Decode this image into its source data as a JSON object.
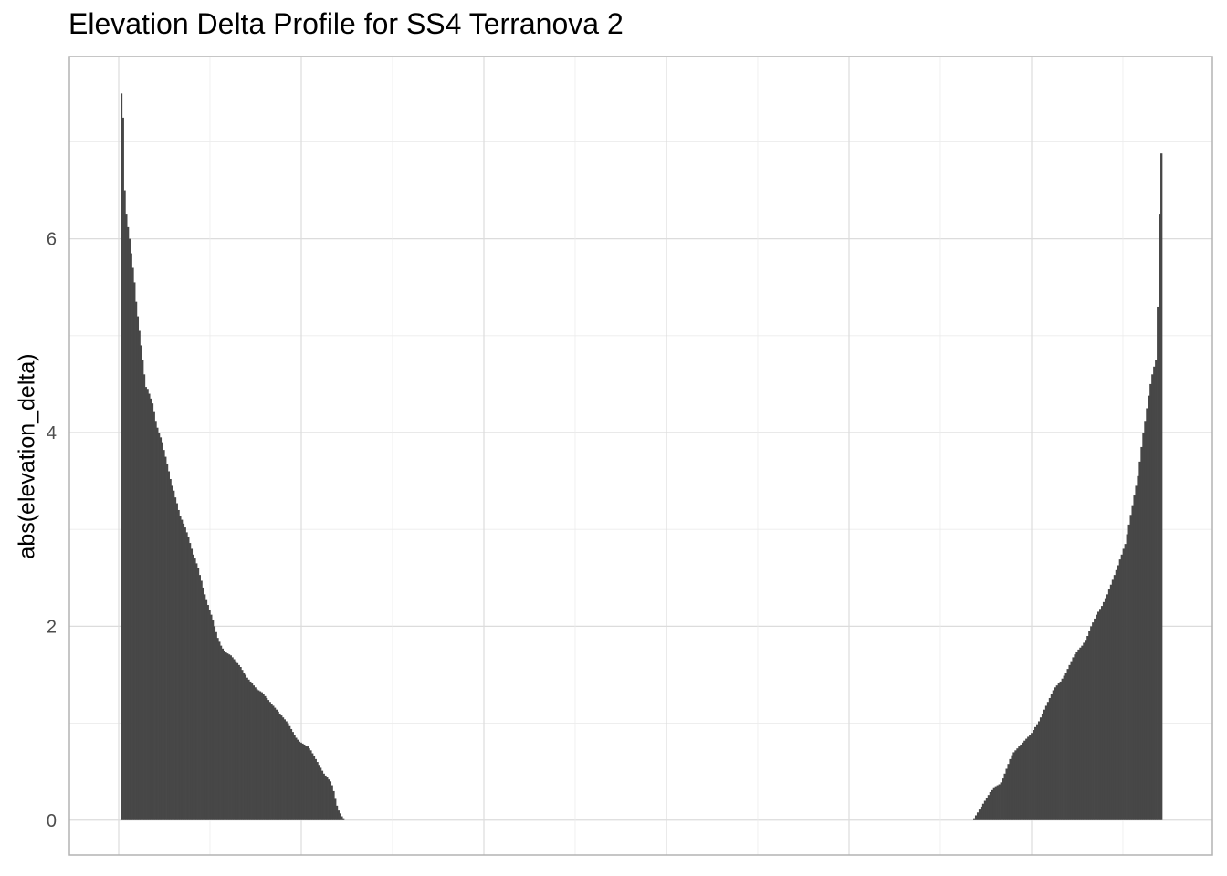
{
  "chart_data": {
    "type": "bar",
    "title": "Elevation Delta Profile for SS4 Terranova 2",
    "xlabel": "",
    "ylabel": "abs(elevation_delta)",
    "ylim": [
      -0.36,
      7.88
    ],
    "y_ticks": [
      0,
      2,
      4,
      6
    ],
    "x_tick_labels": "none",
    "grid": true,
    "bar_color": "#474747",
    "grid_color": "#dcdcdc",
    "panel_border_color": "#b3b3b3",
    "segments": [
      {
        "name": "start",
        "profile": "descending",
        "values": [
          7.5,
          7.25,
          6.5,
          6.25,
          6.12,
          6.0,
          5.85,
          5.7,
          5.55,
          5.35,
          5.2,
          5.05,
          4.9,
          4.75,
          4.6,
          4.47,
          4.45,
          4.4,
          4.35,
          4.3,
          4.22,
          4.12,
          4.05,
          4.0,
          3.95,
          3.9,
          3.82,
          3.75,
          3.68,
          3.6,
          3.52,
          3.45,
          3.4,
          3.33,
          3.27,
          3.2,
          3.14,
          3.1,
          3.06,
          3.02,
          2.97,
          2.92,
          2.86,
          2.8,
          2.74,
          2.7,
          2.65,
          2.6,
          2.53,
          2.47,
          2.4,
          2.33,
          2.28,
          2.22,
          2.17,
          2.12,
          2.06,
          2.0,
          1.94,
          1.88,
          1.84,
          1.8,
          1.77,
          1.75,
          1.73,
          1.72,
          1.71,
          1.7,
          1.68,
          1.66,
          1.64,
          1.62,
          1.6,
          1.58,
          1.55,
          1.52,
          1.5,
          1.47,
          1.45,
          1.43,
          1.41,
          1.39,
          1.37,
          1.35,
          1.34,
          1.33,
          1.32,
          1.3,
          1.28,
          1.26,
          1.24,
          1.22,
          1.2,
          1.18,
          1.16,
          1.14,
          1.12,
          1.1,
          1.08,
          1.06,
          1.04,
          1.02,
          1.0,
          0.97,
          0.94,
          0.91,
          0.88,
          0.85,
          0.83,
          0.81,
          0.8,
          0.79,
          0.78,
          0.77,
          0.76,
          0.74,
          0.72,
          0.69,
          0.66,
          0.63,
          0.6,
          0.57,
          0.54,
          0.51,
          0.48,
          0.46,
          0.44,
          0.42,
          0.4,
          0.36,
          0.3,
          0.22,
          0.15,
          0.1,
          0.07,
          0.04,
          0.02
        ]
      },
      {
        "name": "end",
        "profile": "ascending",
        "values": [
          0.02,
          0.05,
          0.08,
          0.11,
          0.14,
          0.17,
          0.2,
          0.23,
          0.26,
          0.29,
          0.31,
          0.33,
          0.35,
          0.36,
          0.37,
          0.39,
          0.43,
          0.48,
          0.53,
          0.58,
          0.63,
          0.67,
          0.7,
          0.72,
          0.74,
          0.76,
          0.78,
          0.8,
          0.82,
          0.84,
          0.86,
          0.88,
          0.9,
          0.93,
          0.96,
          0.99,
          1.02,
          1.06,
          1.1,
          1.14,
          1.18,
          1.22,
          1.26,
          1.3,
          1.34,
          1.37,
          1.39,
          1.41,
          1.43,
          1.46,
          1.49,
          1.52,
          1.56,
          1.6,
          1.64,
          1.68,
          1.71,
          1.74,
          1.76,
          1.78,
          1.8,
          1.83,
          1.86,
          1.9,
          1.95,
          2.0,
          2.04,
          2.08,
          2.12,
          2.15,
          2.18,
          2.21,
          2.25,
          2.29,
          2.33,
          2.38,
          2.43,
          2.48,
          2.53,
          2.58,
          2.63,
          2.69,
          2.74,
          2.8,
          2.85,
          2.95,
          3.05,
          3.15,
          3.25,
          3.35,
          3.45,
          3.55,
          3.7,
          3.85,
          4.0,
          4.12,
          4.25,
          4.38,
          4.5,
          4.6,
          4.68,
          4.75,
          5.3,
          6.25,
          6.88
        ]
      }
    ]
  }
}
